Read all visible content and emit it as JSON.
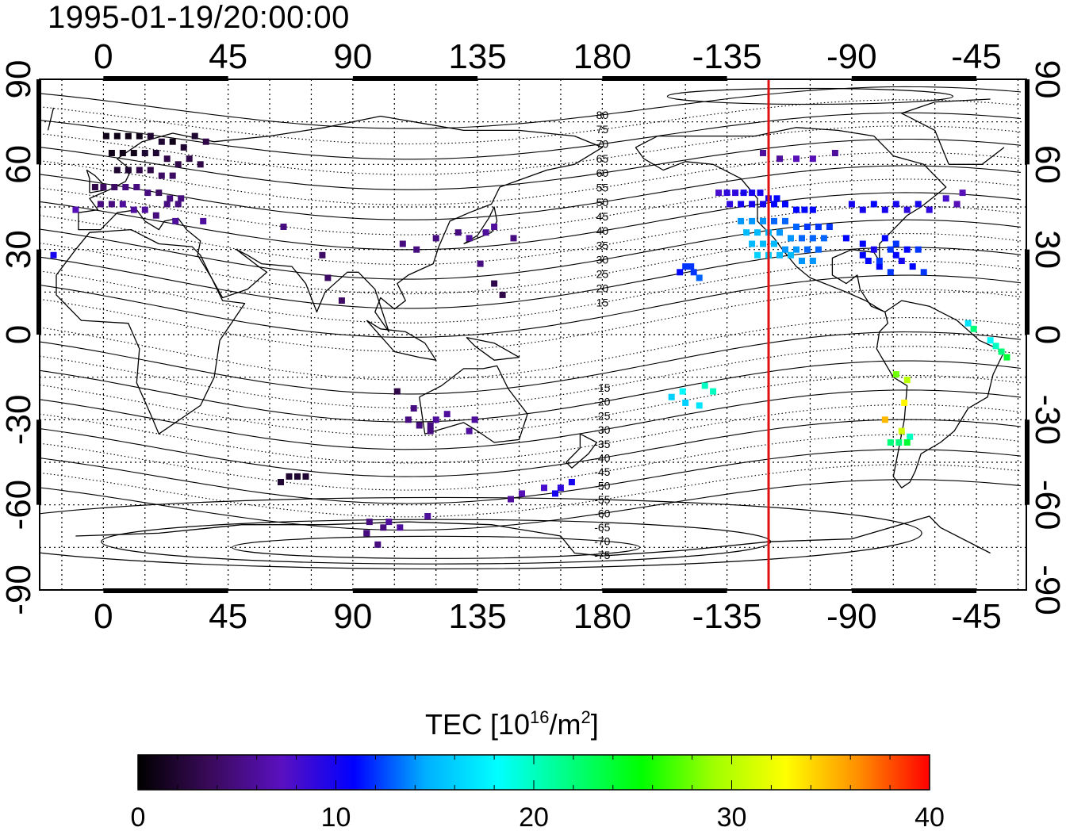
{
  "timestamp": "1995-01-19/20:00:00",
  "map": {
    "projection": "equirectangular",
    "lon_range": [
      -23,
      333
    ],
    "lat_range": [
      -90,
      90
    ],
    "top_lon_labels": [
      "0",
      "45",
      "90",
      "135",
      "180",
      "-135",
      "-90",
      "-45"
    ],
    "bottom_lon_labels": [
      "0",
      "45",
      "90",
      "135",
      "180",
      "-135",
      "-90",
      "-45"
    ],
    "left_lat_labels": [
      "90",
      "60",
      "30",
      "0",
      "-30",
      "-60",
      "-90"
    ],
    "right_lat_labels": [
      "90",
      "60",
      "30",
      "0",
      "-30",
      "-60",
      "-90"
    ],
    "grid": "dotted every 15 degrees",
    "contour_labels": [
      "80",
      "75",
      "70",
      "65",
      "60",
      "55",
      "50",
      "45",
      "40",
      "35",
      "30",
      "25",
      "20",
      "15",
      "-15",
      "-20",
      "-25",
      "-30",
      "-35",
      "-40",
      "-45",
      "-50",
      "-55",
      "-60",
      "-65",
      "-70",
      "-75"
    ],
    "contour_line_color": "#000000",
    "marker_line": {
      "lon": -120,
      "color": "#e01010"
    }
  },
  "colorbar": {
    "title_prefix": "TEC  [10",
    "title_exp1": "16",
    "title_mid": "/m",
    "title_exp2": "2",
    "title_suffix": "]",
    "ticks": [
      "0",
      "10",
      "20",
      "30",
      "40"
    ],
    "range": [
      0,
      40
    ],
    "stops": [
      "#000000",
      "#3a0a5a",
      "#5a10c0",
      "#0000ff",
      "#00b0ff",
      "#00ffff",
      "#00ff80",
      "#00ff00",
      "#a0ff00",
      "#ffff00",
      "#ff9000",
      "#ff0000"
    ]
  },
  "chart_data": {
    "type": "scatter",
    "xlabel": "",
    "ylabel": "",
    "xlim": [
      -23,
      333
    ],
    "ylim": [
      -90,
      90
    ],
    "value_label": "TEC",
    "series": [
      {
        "x": [
          1,
          5,
          9,
          13,
          17,
          21,
          25,
          29,
          33,
          37,
          3,
          7,
          11,
          15,
          19,
          23,
          27,
          31,
          35,
          5,
          9,
          13,
          17,
          21,
          25,
          -3,
          0,
          4,
          8,
          12,
          16,
          20,
          24,
          28,
          -1,
          3,
          7,
          11,
          15,
          19,
          23,
          27,
          -10,
          36,
          26,
          -18,
          65,
          79,
          81,
          86,
          108,
          113,
          120,
          128,
          132,
          138,
          141,
          136,
          148,
          141,
          144,
          110,
          114,
          118,
          106,
          112,
          118,
          120,
          124,
          134,
          132,
          96,
          95,
          99,
          64,
          67,
          70,
          73,
          95,
          101,
          103,
          107,
          117,
          147,
          151,
          159,
          165,
          169,
          163
        ],
        "y": [
          70,
          70,
          70,
          70,
          70,
          68,
          68,
          66,
          70,
          68,
          64,
          64,
          64,
          64,
          64,
          62,
          60,
          62,
          60,
          58,
          58,
          58,
          58,
          56,
          56,
          52,
          52,
          52,
          52,
          52,
          50,
          50,
          48,
          48,
          46,
          46,
          46,
          44,
          44,
          42,
          46,
          46,
          44,
          40,
          40,
          28,
          38,
          28,
          20,
          12,
          32,
          30,
          34,
          36,
          34,
          36,
          38,
          25,
          34,
          18,
          14,
          -30,
          -32,
          -32,
          -20,
          -26,
          -34,
          -30,
          -28,
          -30,
          -34,
          -66,
          -70,
          -74,
          -52,
          -50,
          -50,
          -50,
          -70,
          -68,
          -66,
          -68,
          -64,
          -58,
          -56,
          -54,
          -54,
          -52,
          -56
        ],
        "values": [
          1,
          1,
          1,
          1,
          2,
          2,
          1,
          2,
          2,
          3,
          1,
          1,
          1,
          2,
          2,
          3,
          3,
          3,
          3,
          2,
          2,
          3,
          3,
          4,
          4,
          3,
          4,
          4,
          5,
          5,
          5,
          4,
          5,
          5,
          5,
          5,
          6,
          6,
          6,
          5,
          5,
          5,
          7,
          6,
          6,
          10,
          5,
          4,
          4,
          4,
          5,
          5,
          5,
          5,
          6,
          6,
          6,
          5,
          5,
          3,
          3,
          5,
          5,
          5,
          3,
          5,
          5,
          6,
          6,
          6,
          6,
          5,
          5,
          5,
          2,
          2,
          2,
          2,
          5,
          5,
          6,
          6,
          6,
          6,
          7,
          8,
          9,
          10,
          10
        ]
      },
      {
        "x": [
          -138,
          -135,
          -132,
          -129,
          -126,
          -123,
          -120,
          -117,
          -134,
          -130,
          -126,
          -122,
          -118,
          -114,
          -110,
          -107,
          -104,
          -130,
          -126,
          -122,
          -118,
          -114,
          -110,
          -106,
          -102,
          -98,
          -128,
          -124,
          -120,
          -116,
          -112,
          -108,
          -104,
          -100,
          -126,
          -122,
          -118,
          -114,
          -110,
          -106,
          -102,
          -124,
          -120,
          -116,
          -112,
          -108,
          -104,
          -150,
          -147,
          -145,
          -152,
          -148,
          -155,
          -151,
          -143,
          -150,
          -145,
          -140,
          -122,
          -116,
          -110,
          -104,
          -96,
          -90,
          -86,
          -82,
          -78,
          -74,
          -70,
          -66,
          -62,
          -56,
          -52,
          -50,
          -92,
          -86,
          -82,
          -78,
          -74,
          -70,
          -66,
          -84,
          -80,
          -76,
          -72,
          -68,
          -64,
          -86,
          -80,
          -76,
          -74,
          -48,
          -46,
          -40,
          -38,
          -36,
          -34,
          -74,
          -70,
          -78,
          -71,
          -72,
          -73,
          -69,
          -76,
          -70
        ],
        "y": [
          50,
          50,
          50,
          50,
          50,
          50,
          48,
          48,
          46,
          46,
          46,
          46,
          46,
          46,
          44,
          44,
          44,
          40,
          40,
          40,
          40,
          40,
          38,
          38,
          38,
          38,
          36,
          36,
          36,
          36,
          34,
          34,
          34,
          34,
          32,
          32,
          32,
          30,
          30,
          30,
          30,
          28,
          28,
          28,
          28,
          26,
          26,
          24,
          22,
          20,
          22,
          24,
          -22,
          -20,
          -18,
          -24,
          -25,
          -20,
          64,
          62,
          62,
          62,
          64,
          46,
          44,
          46,
          44,
          46,
          44,
          46,
          44,
          48,
          46,
          50,
          34,
          32,
          30,
          34,
          32,
          30,
          30,
          26,
          24,
          22,
          26,
          24,
          22,
          28,
          26,
          30,
          28,
          4,
          2,
          -2,
          -4,
          -6,
          -8,
          -14,
          -16,
          -30,
          -24,
          -34,
          -38,
          -36,
          -38,
          -38
        ],
        "values": [
          8,
          9,
          9,
          10,
          10,
          10,
          10,
          11,
          9,
          10,
          10,
          10,
          11,
          11,
          11,
          11,
          11,
          14,
          14,
          14,
          13,
          13,
          13,
          12,
          12,
          12,
          15,
          15,
          15,
          14,
          14,
          13,
          13,
          13,
          15,
          15,
          15,
          14,
          14,
          13,
          13,
          16,
          16,
          15,
          15,
          14,
          14,
          12,
          12,
          13,
          11,
          12,
          16,
          18,
          20,
          16,
          17,
          20,
          6,
          6,
          7,
          7,
          6,
          10,
          10,
          11,
          10,
          10,
          9,
          10,
          9,
          8,
          7,
          7,
          11,
          11,
          10,
          11,
          12,
          11,
          12,
          11,
          11,
          12,
          10,
          11,
          12,
          11,
          12,
          12,
          11,
          17,
          22,
          18,
          20,
          22,
          24,
          28,
          30,
          35,
          33,
          31,
          22,
          20,
          22,
          24
        ]
      }
    ]
  }
}
